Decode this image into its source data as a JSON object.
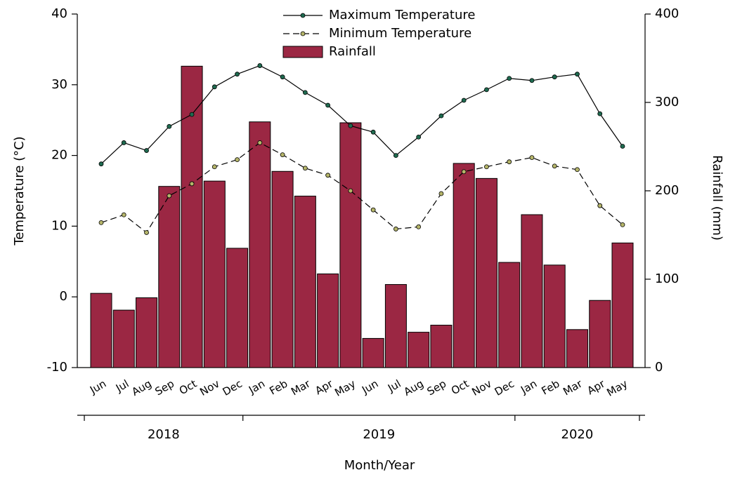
{
  "chart_data": {
    "type": "bar-line",
    "categories": [
      "Jun",
      "Jul",
      "Aug",
      "Sep",
      "Oct",
      "Nov",
      "Dec",
      "Jan",
      "Feb",
      "Mar",
      "Apr",
      "May",
      "Jun",
      "Jul",
      "Aug",
      "Sep",
      "Oct",
      "Nov",
      "Dec",
      "Jan",
      "Feb",
      "Mar",
      "Apr",
      "May"
    ],
    "years": [
      "2018",
      "2019",
      "2020"
    ],
    "x_label": "Month/Year",
    "y_label": "Temperature (°C)",
    "y2_label": "Rainfall (mm)",
    "ylim": [
      -10,
      40
    ],
    "yticks": [
      -10,
      0,
      10,
      20,
      30,
      40
    ],
    "y2lim": [
      0,
      400
    ],
    "y2ticks": [
      0,
      100,
      200,
      300,
      400
    ],
    "series": [
      {
        "name": "Maximum Temperature",
        "kind": "line",
        "color": "#000000",
        "marker_color": "#1f6b50",
        "dash": false,
        "values": [
          18.8,
          21.8,
          20.7,
          24.1,
          25.8,
          29.7,
          31.5,
          32.7,
          31.1,
          28.9,
          27.1,
          24.2,
          23.3,
          20.0,
          22.6,
          25.6,
          27.8,
          29.3,
          30.9,
          30.6,
          31.1,
          31.5,
          25.9,
          21.3
        ]
      },
      {
        "name": "Minimum Temperature",
        "kind": "line",
        "color": "#000000",
        "marker_color": "#b5b56a",
        "dash": true,
        "values": [
          10.5,
          11.6,
          9.1,
          14.3,
          16.0,
          18.4,
          19.4,
          21.8,
          20.1,
          18.2,
          17.2,
          15.0,
          12.3,
          9.6,
          9.9,
          14.6,
          17.7,
          18.4,
          19.1,
          19.7,
          18.5,
          18.0,
          12.9,
          10.2
        ]
      },
      {
        "name": "Rainfall",
        "kind": "bar",
        "axis": "y2",
        "color": "#9b2743",
        "values": [
          84,
          65,
          79,
          205,
          341,
          211,
          135,
          278,
          222,
          194,
          106,
          277,
          33,
          94,
          40,
          48,
          231,
          214,
          119,
          173,
          116,
          43,
          76,
          141
        ]
      }
    ]
  }
}
